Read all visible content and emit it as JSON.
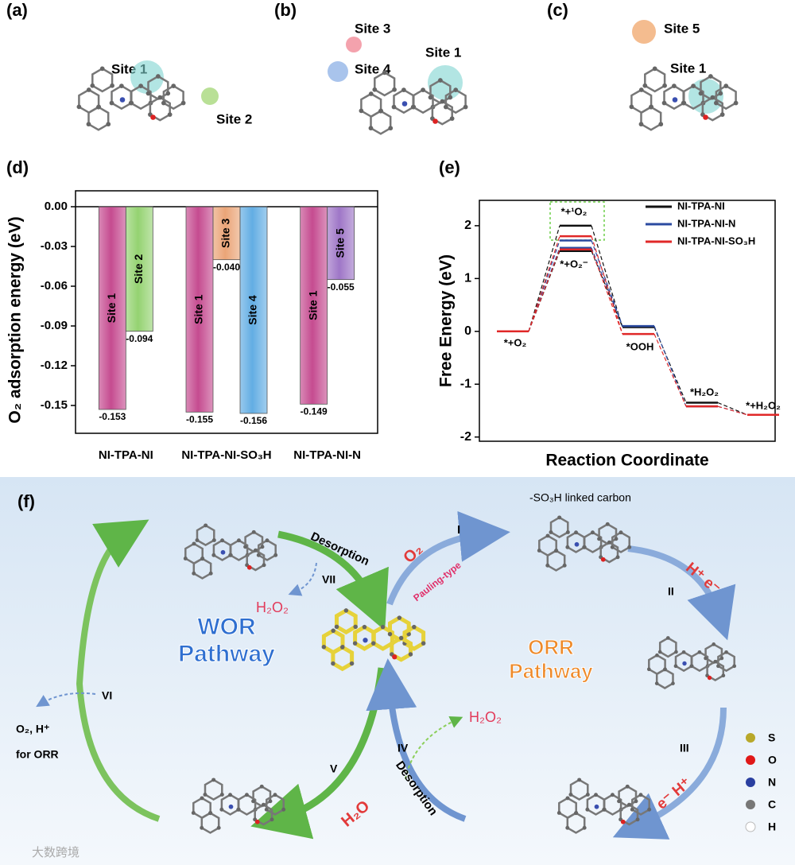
{
  "panels": {
    "a": {
      "label": "(a)",
      "sites": [
        "Site 1",
        "Site 2"
      ]
    },
    "b": {
      "label": "(b)",
      "sites": [
        "Site 3",
        "Site 4",
        "Site 1"
      ]
    },
    "c": {
      "label": "(c)",
      "sites": [
        "Site 5",
        "Site 1"
      ]
    },
    "d": {
      "label": "(d)"
    },
    "e": {
      "label": "(e)"
    },
    "f": {
      "label": "(f)",
      "desorption_top": "Desorption",
      "step_VII": "VII",
      "h2o2_left": "H₂O₂",
      "wor": [
        "WOR",
        "Pathway"
      ],
      "o2": "O₂",
      "pauling": "Pauling-type",
      "step_I": "I",
      "so3h_note": "-SO₃H linked carbon",
      "h_e_top": "H⁺  e⁻",
      "step_II": "II",
      "orr": [
        "ORR",
        "Pathway"
      ],
      "step_III": "III",
      "e_h_bottom": "e⁻  H⁺",
      "step_IV": "IV",
      "desorption_bottom": "Desorption",
      "h2o2_bottom": "H₂O₂",
      "h2o": "H₂O",
      "step_V": "V",
      "step_VI": "VI",
      "o2_h": "O₂, H⁺",
      "for_orr": "for ORR",
      "legend": [
        "S",
        "O",
        "N",
        "C",
        "H"
      ]
    },
    "watermark": "大数跨境"
  },
  "chart_data": [
    {
      "type": "bar",
      "ylabel": "O₂ adsorption energy (eV)",
      "categories": [
        "NI-TPA-NI",
        "NI-TPA-NI-SO₃H",
        "NI-TPA-NI-N"
      ],
      "series": [
        {
          "name": "Site 1",
          "color": "#c2428a",
          "values": [
            -0.153,
            -0.155,
            -0.149
          ],
          "value_labels": [
            "-0.153",
            "-0.155",
            "-0.149"
          ]
        },
        {
          "name": "Site 2",
          "color": "#8fd06a",
          "values": [
            -0.094,
            null,
            null
          ],
          "value_labels": [
            "-0.094",
            null,
            null
          ]
        },
        {
          "name": "Site 3",
          "color": "#e9a070",
          "values": [
            null,
            -0.04,
            null
          ],
          "value_labels": [
            null,
            "-0.040",
            null
          ]
        },
        {
          "name": "Site 4",
          "color": "#5aa9e2",
          "values": [
            null,
            -0.156,
            null
          ],
          "value_labels": [
            null,
            "-0.156",
            null
          ]
        },
        {
          "name": "Site 5",
          "color": "#9a6fc4",
          "values": [
            null,
            null,
            -0.055
          ],
          "value_labels": [
            null,
            null,
            "-0.055"
          ]
        }
      ],
      "ylim": [
        -0.171,
        0.012
      ],
      "yticks": [
        {
          "value": 0,
          "label": "0.00"
        },
        {
          "value": -0.03,
          "label": "-0.03"
        },
        {
          "value": -0.06,
          "label": "-0.06"
        },
        {
          "value": -0.09,
          "label": "-0.09"
        },
        {
          "value": -0.12,
          "label": "-0.12"
        },
        {
          "value": -0.15,
          "label": "-0.15"
        }
      ]
    },
    {
      "type": "energy",
      "xlabel": "Reaction Coordinate",
      "ylabel": "Free Energy (eV)",
      "categories": [
        "*+O₂",
        "*+¹O₂",
        "*+O₂⁻",
        "*OOH",
        "*H₂O₂",
        "*+H₂O₂"
      ],
      "series": [
        {
          "name": "NI-TPA-NI",
          "color": "#111111",
          "values": [
            0,
            2.0,
            1.52,
            0.08,
            -1.35,
            -1.58
          ]
        },
        {
          "name": "NI-TPA-NI-N",
          "color": "#2b4aa0",
          "values": [
            0,
            1.72,
            1.58,
            0.1,
            -1.42,
            -1.58
          ]
        },
        {
          "name": "NI-TPA-NI-SO₃H",
          "color": "#e02828",
          "values": [
            0,
            1.8,
            1.55,
            -0.05,
            -1.42,
            -1.58
          ]
        }
      ],
      "ylim": [
        -2.08,
        2.48
      ],
      "yticks": [
        2,
        1,
        0,
        -1,
        -2
      ],
      "legend": "upper right"
    }
  ]
}
